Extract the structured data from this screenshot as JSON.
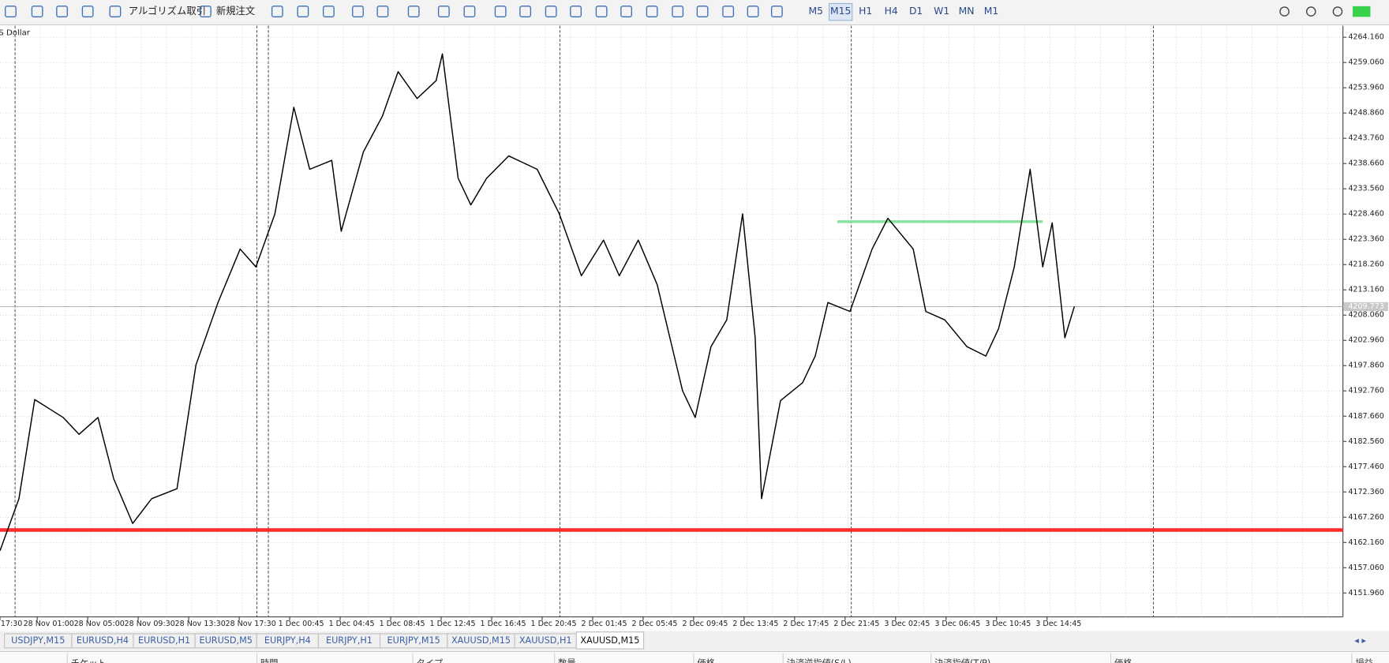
{
  "toolbar": {
    "algo_trading": "アルゴリズム取引",
    "new_order": "新規注文",
    "timeframes": [
      "M5",
      "M15",
      "H1",
      "H4",
      "D1",
      "W1",
      "MN",
      "M1"
    ],
    "active_timeframe": 1
  },
  "chart": {
    "symbol_label": "US Dollar",
    "xlim": [
      0,
      425
    ],
    "ylim": [
      4147.13,
      4266.49
    ],
    "yticks": [
      {
        "value": 4264.16,
        "label": "4264.160"
      },
      {
        "value": 4259.06,
        "label": "4259.060"
      },
      {
        "value": 4253.96,
        "label": "4253.960"
      },
      {
        "value": 4248.86,
        "label": "4248.860"
      },
      {
        "value": 4243.76,
        "label": "4243.760"
      },
      {
        "value": 4238.66,
        "label": "4238.660"
      },
      {
        "value": 4233.56,
        "label": "4233.560"
      },
      {
        "value": 4228.46,
        "label": "4228.460"
      },
      {
        "value": 4223.36,
        "label": "4223.360"
      },
      {
        "value": 4218.26,
        "label": "4218.260"
      },
      {
        "value": 4213.16,
        "label": "4213.160"
      },
      {
        "value": 4208.06,
        "label": "4208.060"
      },
      {
        "value": 4202.96,
        "label": "4202.960"
      },
      {
        "value": 4197.86,
        "label": "4197.860"
      },
      {
        "value": 4192.76,
        "label": "4192.760"
      },
      {
        "value": 4187.66,
        "label": "4187.660"
      },
      {
        "value": 4182.56,
        "label": "4182.560"
      },
      {
        "value": 4177.46,
        "label": "4177.460"
      },
      {
        "value": 4172.36,
        "label": "4172.360"
      },
      {
        "value": 4167.26,
        "label": "4167.260"
      },
      {
        "value": 4162.16,
        "label": "4162.160"
      },
      {
        "value": 4157.06,
        "label": "4157.060"
      },
      {
        "value": 4151.96,
        "label": "4151.960"
      }
    ],
    "xlabels": [
      "17:30",
      "28 Nov 01:00",
      "28 Nov 05:00",
      "28 Nov 09:30",
      "28 Nov 13:30",
      "28 Nov 17:30",
      "1 Dec 00:45",
      "1 Dec 04:45",
      "1 Dec 08:45",
      "1 Dec 12:45",
      "1 Dec 16:45",
      "1 Dec 20:45",
      "2 Dec 01:45",
      "2 Dec 05:45",
      "2 Dec 09:45",
      "2 Dec 13:45",
      "2 Dec 17:45",
      "2 Dec 21:45",
      "3 Dec 02:45",
      "3 Dec 06:45",
      "3 Dec 10:45",
      "3 Dec 14:45"
    ],
    "price": {
      "color": "#000000",
      "bars": [
        0,
        6,
        11,
        20,
        25,
        31,
        36,
        42,
        48,
        56,
        62,
        69,
        76,
        81,
        87,
        93,
        98,
        105,
        108,
        115,
        121,
        126,
        132,
        138,
        140,
        145,
        149,
        154,
        161,
        170,
        177,
        184,
        191,
        196,
        202,
        208,
        216,
        220,
        225,
        230,
        235,
        239,
        241,
        247,
        254,
        258,
        262,
        269,
        276,
        281,
        289,
        293,
        299,
        306,
        312,
        316,
        321,
        326,
        330,
        333,
        337,
        340
      ],
      "values": [
        4160.5,
        4171,
        4191,
        4187.4,
        4184,
        4187.4,
        4175,
        4166,
        4171,
        4173,
        4198,
        4210.6,
        4221.4,
        4217.8,
        4228.5,
        4250,
        4237.5,
        4239.3,
        4225,
        4241,
        4248.2,
        4257.2,
        4251.8,
        4255.4,
        4260.8,
        4235.7,
        4230.3,
        4235.7,
        4240.2,
        4237.5,
        4228.5,
        4216,
        4223.2,
        4216,
        4223.2,
        4214.2,
        4192.8,
        4187.4,
        4201.7,
        4207.1,
        4228.5,
        4203.5,
        4171,
        4190.8,
        4194.4,
        4199.8,
        4210.6,
        4208.8,
        4221.4,
        4227.6,
        4221.4,
        4208.8,
        4207.1,
        4201.7,
        4199.8,
        4205.3,
        4217.8,
        4237.5,
        4217.8,
        4226.7,
        4203.5,
        4209.8
      ]
    },
    "current_price": 4209.773,
    "levels": [
      {
        "value": 4164.67,
        "color": "#ff2a2a"
      },
      {
        "value": 4226.94,
        "from": 265,
        "to": 330,
        "color": "#86e39a"
      }
    ]
  },
  "tabs": [
    "USDJPY,M15",
    "EURUSD,H4",
    "EURUSD,H1",
    "EURUSD,M5",
    "EURJPY,H4",
    "EURJPY,H1",
    "EURJPY,M15",
    "XAUUSD,M15",
    "XAUUSD,H1",
    "XAUUSD,M15"
  ],
  "active_tab": 9,
  "table_header": [
    "チケット",
    "時間",
    "タイプ",
    "数量",
    "価格",
    "決済逆指値(S/L)",
    "決済指値(T/P)",
    "価格",
    "損益"
  ]
}
